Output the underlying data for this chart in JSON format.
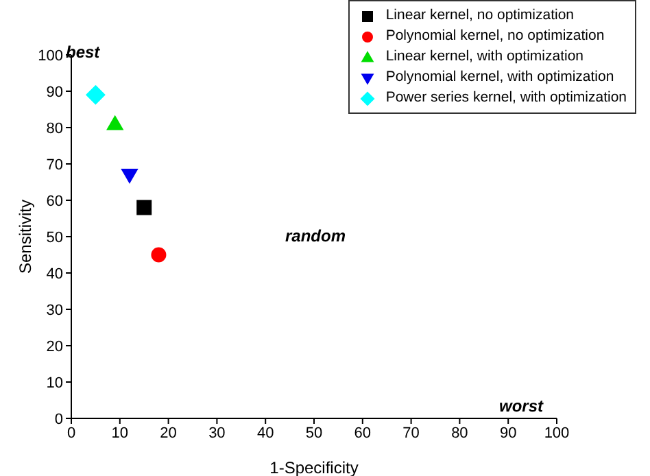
{
  "chart_data": {
    "type": "scatter",
    "xlabel": "1-Specificity",
    "ylabel": "Sensitivity",
    "xlim": [
      0,
      100
    ],
    "ylim": [
      0,
      100
    ],
    "xticks": [
      0,
      10,
      20,
      30,
      40,
      50,
      60,
      70,
      80,
      90,
      100
    ],
    "yticks": [
      0,
      10,
      20,
      30,
      40,
      50,
      60,
      70,
      80,
      90,
      100
    ],
    "grid": false,
    "legend": "top right",
    "series": [
      {
        "name": "Linear kernel, no optimization",
        "color": "#000000",
        "marker": "square",
        "x": [
          15
        ],
        "values": [
          58
        ]
      },
      {
        "name": "Polynomial kernel, no optimization",
        "color": "#ff0000",
        "marker": "circle",
        "x": [
          18
        ],
        "values": [
          45
        ]
      },
      {
        "name": "Linear kernel, with optimization",
        "color": "#00dd00",
        "marker": "triangle",
        "x": [
          9
        ],
        "values": [
          81
        ]
      },
      {
        "name": "Polynomial kernel, with optimization",
        "color": "#0000ee",
        "marker": "triangle-down",
        "x": [
          12
        ],
        "values": [
          67
        ]
      },
      {
        "name": "Power series kernel, with optimization",
        "color": "#00ffff",
        "marker": "diamond",
        "x": [
          5
        ],
        "values": [
          89
        ]
      }
    ],
    "annotations": [
      "best",
      "random",
      "worst"
    ]
  }
}
